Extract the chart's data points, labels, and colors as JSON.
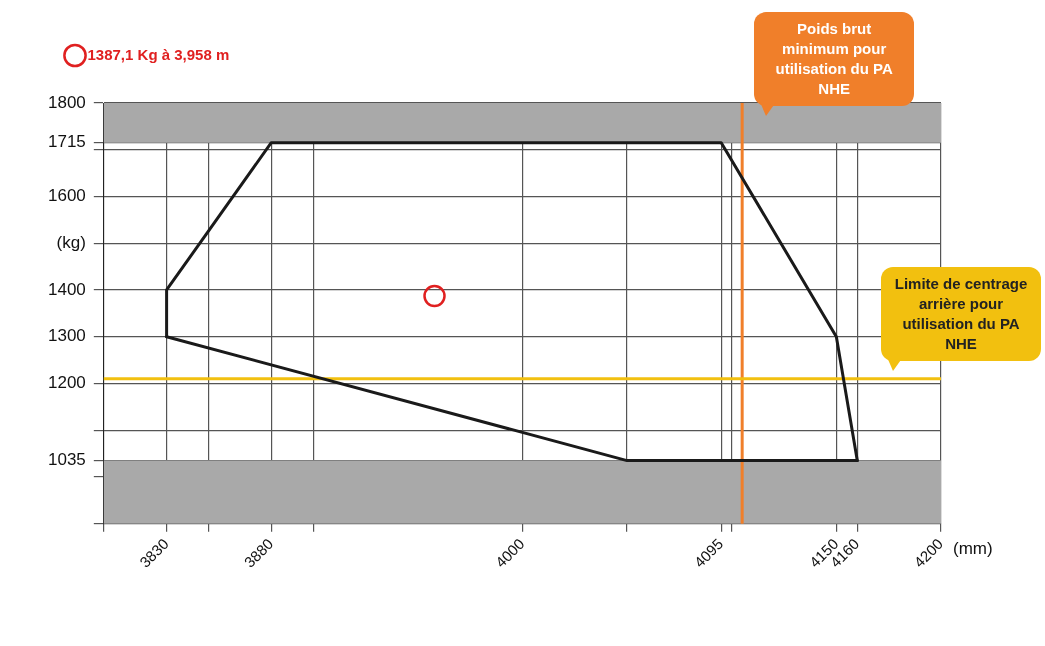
{
  "chart_data": {
    "type": "line",
    "xlim": [
      3800,
      4200
    ],
    "xticks": [
      {
        "value": 3800,
        "label": null
      },
      3830,
      {
        "value": 3850,
        "label": null
      },
      3880,
      {
        "value": 3900,
        "label": null
      },
      4000,
      {
        "value": 4050,
        "label": null
      },
      4095,
      {
        "value": 4100,
        "label": null
      },
      4150,
      4160,
      4200
    ],
    "ylim": [
      900,
      1800
    ],
    "yticks": [
      {
        "value": 900,
        "label": null
      },
      {
        "value": 1000,
        "label": null
      },
      1035,
      {
        "value": 1100,
        "label": null
      },
      1200,
      1300,
      1400,
      {
        "value": 1500,
        "label": "(kg)"
      },
      1600,
      {
        "value": 1700,
        "label": null
      },
      1715,
      1800
    ],
    "xlabel": "(mm)",
    "grid": true,
    "legend": "top left",
    "series": [
      {
        "color": "#1a1a1a",
        "x": [
          3830,
          3830,
          3880,
          4095,
          4150,
          4160
        ],
        "values": [
          1300,
          1400,
          1715,
          1715,
          1300,
          1035
        ]
      },
      {
        "color": "#1a1a1a",
        "x": [
          3830,
          4050,
          4160
        ],
        "values": [
          1300,
          1035,
          1035
        ]
      },
      {
        "type": "scatter",
        "name": "1387,1 Kg à 3,958 m",
        "color": "#e02020",
        "marker": "circle",
        "x": [
          3958
        ],
        "values": [
          1387.1
        ]
      }
    ],
    "bands": [
      {
        "axis": "y",
        "from": 1715,
        "to": 1800,
        "color": "#a9a9a9"
      },
      {
        "axis": "y",
        "from": 900,
        "to": 1035,
        "color": "#a9a9a9"
      }
    ],
    "ref_lines": [
      {
        "axis": "x",
        "value": 4105,
        "label": "Poids brut minimum pour utilisation du PA NHE",
        "color": "#f07f2a"
      },
      {
        "axis": "y",
        "value": 1210,
        "label": "Limite de centrage arrière pour utilisation du PA NHE",
        "color": "#f2c00f"
      }
    ]
  }
}
